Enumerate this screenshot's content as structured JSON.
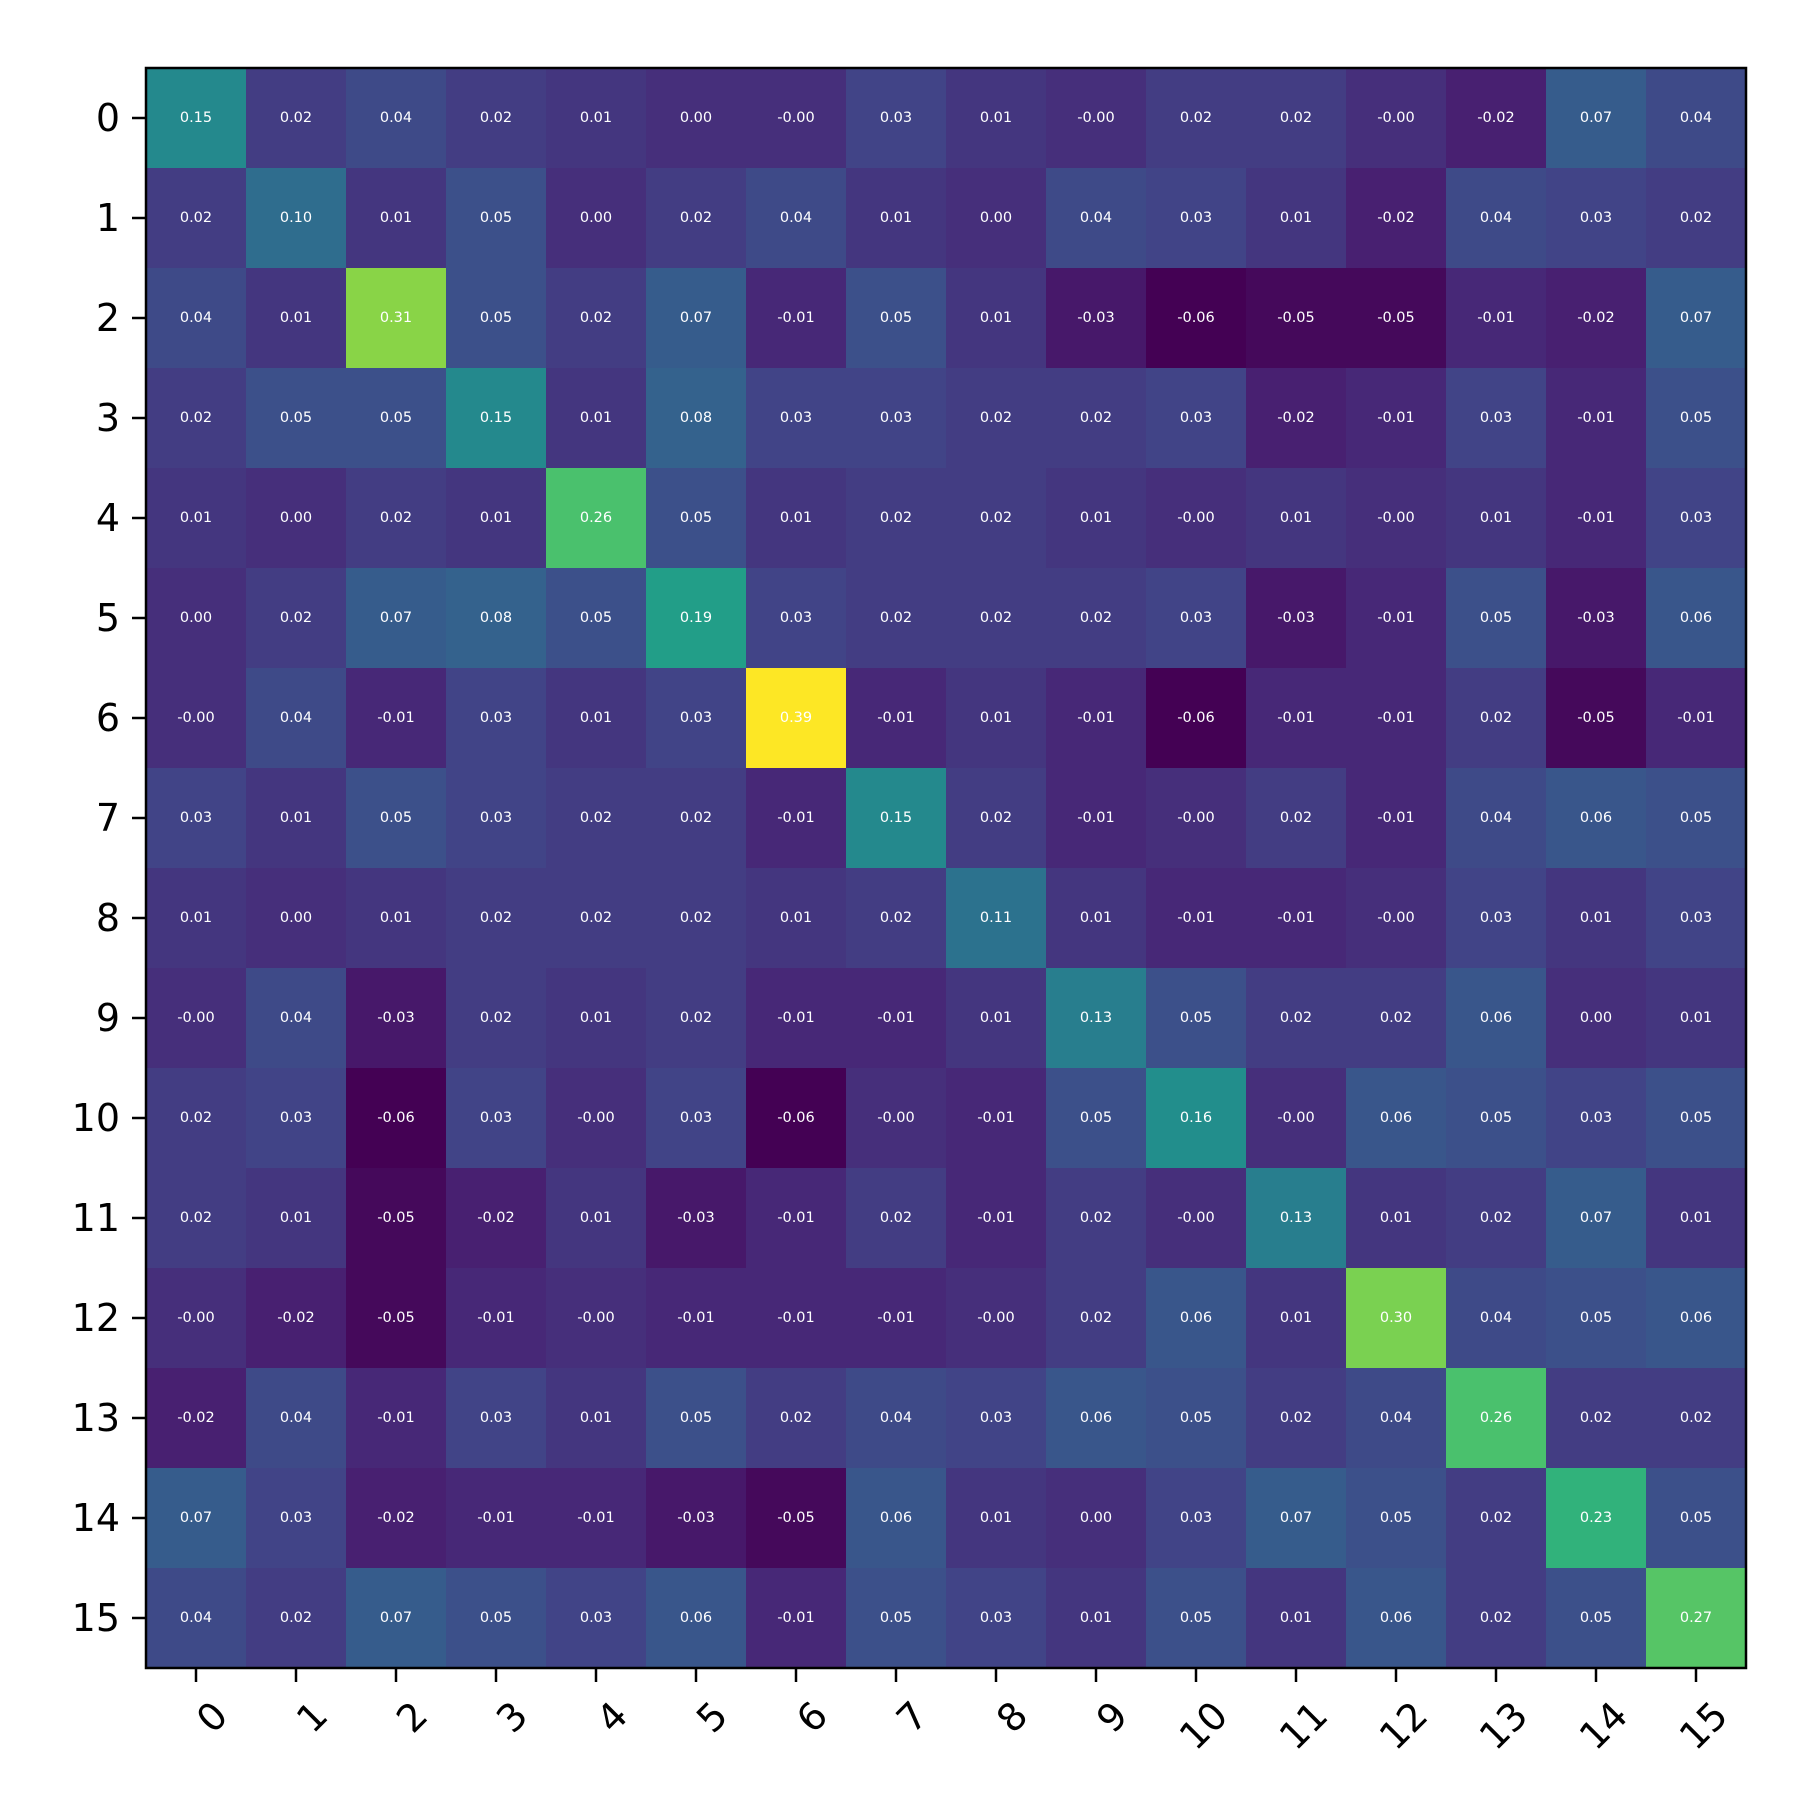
{
  "chart_data": {
    "type": "heatmap",
    "title": "",
    "xlabel": "",
    "ylabel": "",
    "colormap": "viridis",
    "value_range": [
      -0.06,
      0.39
    ],
    "grid": false,
    "colorbar": false,
    "x_tick_labels": [
      "0",
      "1",
      "2",
      "3",
      "4",
      "5",
      "6",
      "7",
      "8",
      "9",
      "10",
      "11",
      "12",
      "13",
      "14",
      "15"
    ],
    "y_tick_labels": [
      "0",
      "1",
      "2",
      "3",
      "4",
      "5",
      "6",
      "7",
      "8",
      "9",
      "10",
      "11",
      "12",
      "13",
      "14",
      "15"
    ],
    "values": [
      [
        0.15,
        0.02,
        0.04,
        0.02,
        0.01,
        0.0,
        -0.0,
        0.03,
        0.01,
        -0.0,
        0.02,
        0.02,
        -0.0,
        -0.02,
        0.07,
        0.04
      ],
      [
        0.02,
        0.1,
        0.01,
        0.05,
        0.0,
        0.02,
        0.04,
        0.01,
        0.0,
        0.04,
        0.03,
        0.01,
        -0.02,
        0.04,
        0.03,
        0.02
      ],
      [
        0.04,
        0.01,
        0.31,
        0.05,
        0.02,
        0.07,
        -0.01,
        0.05,
        0.01,
        -0.03,
        -0.06,
        -0.05,
        -0.05,
        -0.01,
        -0.02,
        0.07
      ],
      [
        0.02,
        0.05,
        0.05,
        0.15,
        0.01,
        0.08,
        0.03,
        0.03,
        0.02,
        0.02,
        0.03,
        -0.02,
        -0.01,
        0.03,
        -0.01,
        0.05
      ],
      [
        0.01,
        0.0,
        0.02,
        0.01,
        0.26,
        0.05,
        0.01,
        0.02,
        0.02,
        0.01,
        -0.0,
        0.01,
        -0.0,
        0.01,
        -0.01,
        0.03
      ],
      [
        0.0,
        0.02,
        0.07,
        0.08,
        0.05,
        0.19,
        0.03,
        0.02,
        0.02,
        0.02,
        0.03,
        -0.03,
        -0.01,
        0.05,
        -0.03,
        0.06
      ],
      [
        -0.0,
        0.04,
        -0.01,
        0.03,
        0.01,
        0.03,
        0.39,
        -0.01,
        0.01,
        -0.01,
        -0.06,
        -0.01,
        -0.01,
        0.02,
        -0.05,
        -0.01
      ],
      [
        0.03,
        0.01,
        0.05,
        0.03,
        0.02,
        0.02,
        -0.01,
        0.15,
        0.02,
        -0.01,
        -0.0,
        0.02,
        -0.01,
        0.04,
        0.06,
        0.05
      ],
      [
        0.01,
        0.0,
        0.01,
        0.02,
        0.02,
        0.02,
        0.01,
        0.02,
        0.11,
        0.01,
        -0.01,
        -0.01,
        -0.0,
        0.03,
        0.01,
        0.03
      ],
      [
        -0.0,
        0.04,
        -0.03,
        0.02,
        0.01,
        0.02,
        -0.01,
        -0.01,
        0.01,
        0.13,
        0.05,
        0.02,
        0.02,
        0.06,
        0.0,
        0.01
      ],
      [
        0.02,
        0.03,
        -0.06,
        0.03,
        -0.0,
        0.03,
        -0.06,
        -0.0,
        -0.01,
        0.05,
        0.16,
        -0.0,
        0.06,
        0.05,
        0.03,
        0.05
      ],
      [
        0.02,
        0.01,
        -0.05,
        -0.02,
        0.01,
        -0.03,
        -0.01,
        0.02,
        -0.01,
        0.02,
        -0.0,
        0.13,
        0.01,
        0.02,
        0.07,
        0.01
      ],
      [
        -0.0,
        -0.02,
        -0.05,
        -0.01,
        -0.0,
        -0.01,
        -0.01,
        -0.01,
        -0.0,
        0.02,
        0.06,
        0.01,
        0.3,
        0.04,
        0.05,
        0.06
      ],
      [
        -0.02,
        0.04,
        -0.01,
        0.03,
        0.01,
        0.05,
        0.02,
        0.04,
        0.03,
        0.06,
        0.05,
        0.02,
        0.04,
        0.26,
        0.02,
        0.02
      ],
      [
        0.07,
        0.03,
        -0.02,
        -0.01,
        -0.01,
        -0.03,
        -0.05,
        0.06,
        0.01,
        0.0,
        0.03,
        0.07,
        0.05,
        0.02,
        0.23,
        0.05
      ],
      [
        0.04,
        0.02,
        0.07,
        0.05,
        0.03,
        0.06,
        -0.01,
        0.05,
        0.03,
        0.01,
        0.05,
        0.01,
        0.06,
        0.02,
        0.05,
        0.27
      ]
    ],
    "cell_labels": [
      [
        "0.15",
        "0.02",
        "0.04",
        "0.02",
        "0.01",
        "0.00",
        "-0.00",
        "0.03",
        "0.01",
        "-0.00",
        "0.02",
        "0.02",
        "-0.00",
        "-0.02",
        "0.07",
        "0.04"
      ],
      [
        "0.02",
        "0.10",
        "0.01",
        "0.05",
        "0.00",
        "0.02",
        "0.04",
        "0.01",
        "0.00",
        "0.04",
        "0.03",
        "0.01",
        "-0.02",
        "0.04",
        "0.03",
        "0.02"
      ],
      [
        "0.04",
        "0.01",
        "0.31",
        "0.05",
        "0.02",
        "0.07",
        "-0.01",
        "0.05",
        "0.01",
        "-0.03",
        "-0.06",
        "-0.05",
        "-0.05",
        "-0.01",
        "-0.02",
        "0.07"
      ],
      [
        "0.02",
        "0.05",
        "0.05",
        "0.15",
        "0.01",
        "0.08",
        "0.03",
        "0.03",
        "0.02",
        "0.02",
        "0.03",
        "-0.02",
        "-0.01",
        "0.03",
        "-0.01",
        "0.05"
      ],
      [
        "0.01",
        "0.00",
        "0.02",
        "0.01",
        "0.26",
        "0.05",
        "0.01",
        "0.02",
        "0.02",
        "0.01",
        "-0.00",
        "0.01",
        "-0.00",
        "0.01",
        "-0.01",
        "0.03"
      ],
      [
        "0.00",
        "0.02",
        "0.07",
        "0.08",
        "0.05",
        "0.19",
        "0.03",
        "0.02",
        "0.02",
        "0.02",
        "0.03",
        "-0.03",
        "-0.01",
        "0.05",
        "-0.03",
        "0.06"
      ],
      [
        "-0.00",
        "0.04",
        "-0.01",
        "0.03",
        "0.01",
        "0.03",
        "0.39",
        "-0.01",
        "0.01",
        "-0.01",
        "-0.06",
        "-0.01",
        "-0.01",
        "0.02",
        "-0.05",
        "-0.01"
      ],
      [
        "0.03",
        "0.01",
        "0.05",
        "0.03",
        "0.02",
        "0.02",
        "-0.01",
        "0.15",
        "0.02",
        "-0.01",
        "-0.00",
        "0.02",
        "-0.01",
        "0.04",
        "0.06",
        "0.05"
      ],
      [
        "0.01",
        "0.00",
        "0.01",
        "0.02",
        "0.02",
        "0.02",
        "0.01",
        "0.02",
        "0.11",
        "0.01",
        "-0.01",
        "-0.01",
        "-0.00",
        "0.03",
        "0.01",
        "0.03"
      ],
      [
        "-0.00",
        "0.04",
        "-0.03",
        "0.02",
        "0.01",
        "0.02",
        "-0.01",
        "-0.01",
        "0.01",
        "0.13",
        "0.05",
        "0.02",
        "0.02",
        "0.06",
        "0.00",
        "0.01"
      ],
      [
        "0.02",
        "0.03",
        "-0.06",
        "0.03",
        "-0.00",
        "0.03",
        "-0.06",
        "-0.00",
        "-0.01",
        "0.05",
        "0.16",
        "-0.00",
        "0.06",
        "0.05",
        "0.03",
        "0.05"
      ],
      [
        "0.02",
        "0.01",
        "-0.05",
        "-0.02",
        "0.01",
        "-0.03",
        "-0.01",
        "0.02",
        "-0.01",
        "0.02",
        "-0.00",
        "0.13",
        "0.01",
        "0.02",
        "0.07",
        "0.01"
      ],
      [
        "-0.00",
        "-0.02",
        "-0.05",
        "-0.01",
        "-0.00",
        "-0.01",
        "-0.01",
        "-0.01",
        "-0.00",
        "0.02",
        "0.06",
        "0.01",
        "0.30",
        "0.04",
        "0.05",
        "0.06"
      ],
      [
        "-0.02",
        "0.04",
        "-0.01",
        "0.03",
        "0.01",
        "0.05",
        "0.02",
        "0.04",
        "0.03",
        "0.06",
        "0.05",
        "0.02",
        "0.04",
        "0.26",
        "0.02",
        "0.02"
      ],
      [
        "0.07",
        "0.03",
        "-0.02",
        "-0.01",
        "-0.01",
        "-0.03",
        "-0.05",
        "0.06",
        "0.01",
        "0.00",
        "0.03",
        "0.07",
        "0.05",
        "0.02",
        "0.23",
        "0.05"
      ],
      [
        "0.04",
        "0.02",
        "0.07",
        "0.05",
        "0.03",
        "0.06",
        "-0.01",
        "0.05",
        "0.03",
        "0.01",
        "0.05",
        "0.01",
        "0.06",
        "0.02",
        "0.05",
        "0.27"
      ]
    ],
    "colors": {
      "cell_text": "#ffffff",
      "frame": "#000000",
      "tick_text": "#000000",
      "background": "#ffffff"
    }
  }
}
